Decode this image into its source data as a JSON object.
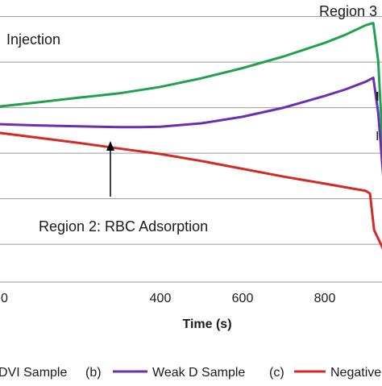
{
  "chart_data": {
    "type": "line",
    "xlabel": "Time (s)",
    "x_ticks": [
      0,
      400,
      600,
      800
    ],
    "x_tick_labels": [
      "0",
      "400",
      "600",
      "800"
    ],
    "xlim": [
      0,
      1000
    ],
    "ylim": [
      0,
      10
    ],
    "grid": true,
    "legend_placement": "bottom",
    "legend": [
      {
        "prefix": "",
        "label": "DVI Sample",
        "color": "#21a04f"
      },
      {
        "prefix": "(b)",
        "label": "Weak D Sample",
        "color": "#6a2fb3"
      },
      {
        "prefix": "(c)",
        "label": "Negative",
        "color": "#d42a25"
      }
    ],
    "series": [
      {
        "name": "DVI Sample",
        "color": "#21a04f",
        "x": [
          0,
          100,
          200,
          300,
          400,
          500,
          600,
          700,
          800,
          850,
          900,
          918,
          930,
          945,
          960
        ],
        "y": [
          6.73,
          6.9,
          7.08,
          7.25,
          7.5,
          7.83,
          8.22,
          8.67,
          9.19,
          9.5,
          9.87,
          9.95,
          8.5,
          4.0,
          1.0
        ]
      },
      {
        "name": "Weak D Sample",
        "color": "#6a2fb3",
        "x": [
          0,
          100,
          200,
          300,
          350,
          400,
          500,
          600,
          700,
          800,
          850,
          900,
          918,
          930,
          945,
          960
        ],
        "y": [
          6.07,
          6.02,
          5.98,
          5.95,
          5.95,
          5.97,
          6.1,
          6.35,
          6.7,
          7.15,
          7.4,
          7.7,
          7.85,
          6.5,
          3.5,
          1.0
        ]
      },
      {
        "name": "Negative",
        "color": "#d42a25",
        "x": [
          0,
          100,
          200,
          300,
          400,
          500,
          600,
          700,
          800,
          900,
          910,
          920,
          935,
          950,
          960
        ],
        "y": [
          5.75,
          5.55,
          5.35,
          5.13,
          4.92,
          4.65,
          4.35,
          4.05,
          3.78,
          3.5,
          3.4,
          2.0,
          1.5,
          1.0,
          0.6
        ]
      }
    ],
    "annotations": {
      "region1": "Injection",
      "region2": "Region 2: RBC Adsorption",
      "region3": "Region 3"
    }
  }
}
